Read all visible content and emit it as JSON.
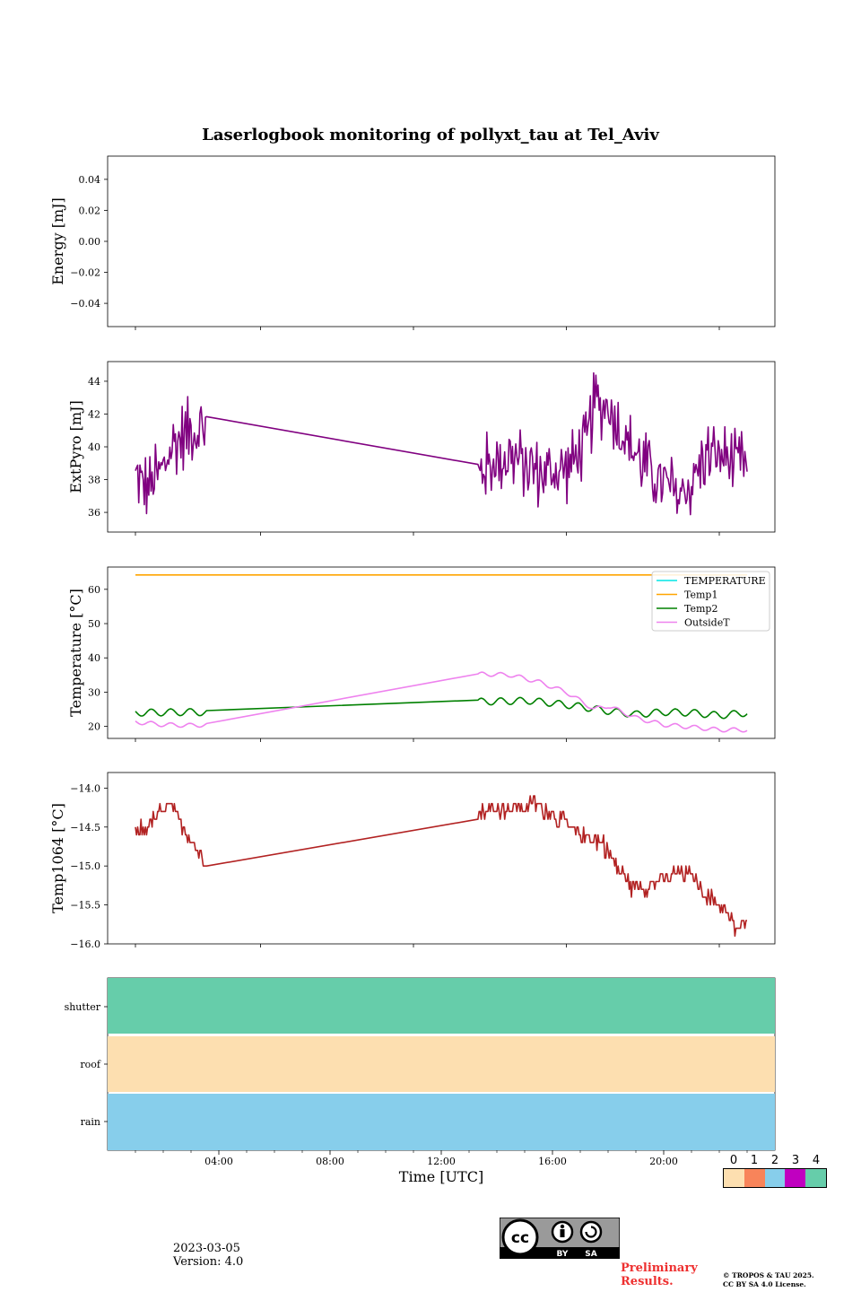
{
  "title": "Laserlogbook monitoring of pollyxt_tau at Tel_Aviv",
  "xlabel": "Time [UTC]",
  "x_ticks": [
    "04:00",
    "08:00",
    "12:00",
    "16:00",
    "20:00"
  ],
  "footer": {
    "date": "2023-03-05",
    "version": "Version: 4.0",
    "preliminary": "Preliminary",
    "results": "Results.",
    "copyright1": "© TROPOS & TAU 2025.",
    "copyright2": "CC BY SA 4.0 License."
  },
  "cc_badge": {
    "by": "BY",
    "sa": "SA"
  },
  "colorbar": {
    "ticks": [
      "0",
      "1",
      "2",
      "3",
      "4"
    ],
    "colors": [
      "#fddfb0",
      "#f8845a",
      "#87ceeb",
      "#c000c0",
      "#66cdaa"
    ]
  },
  "chart_data": [
    {
      "type": "line",
      "ylabel": "Energy [mJ]",
      "ylim": [
        -0.055,
        0.055
      ],
      "yticks": [
        0.04,
        0.02,
        0.0,
        -0.02,
        -0.04
      ],
      "ytick_labels": [
        "0.04",
        "0.02",
        "0.00",
        "−0.02",
        "−0.04"
      ],
      "series": []
    },
    {
      "type": "line",
      "ylabel": "ExtPyro [mJ]",
      "ylim": [
        34.8,
        45.2
      ],
      "yticks": [
        36,
        38,
        40,
        42,
        44
      ],
      "ytick_labels": [
        "36",
        "38",
        "40",
        "42",
        "44"
      ],
      "series": [
        {
          "color": "#800080",
          "noise": 2.2,
          "points": [
            [
              1.0,
              38.2
            ],
            [
              1.5,
              37.5
            ],
            [
              2.0,
              38.8
            ],
            [
              2.5,
              40.5
            ],
            [
              3.0,
              41.0
            ],
            [
              3.5,
              41.2
            ],
            [
              3.6,
              41.0
            ],
            [
              13.3,
              38.2
            ],
            [
              13.6,
              38.8
            ],
            [
              14.5,
              39.5
            ],
            [
              15.5,
              38.4
            ],
            [
              16.5,
              38.5
            ],
            [
              17.2,
              40.0
            ],
            [
              17.5,
              42.5
            ],
            [
              18.0,
              42.5
            ],
            [
              18.6,
              40.5
            ],
            [
              19.5,
              38.5
            ],
            [
              20.5,
              37.0
            ],
            [
              21.0,
              37.8
            ],
            [
              21.5,
              39.5
            ],
            [
              22.0,
              39.5
            ],
            [
              22.5,
              39.0
            ],
            [
              23.0,
              38.8
            ]
          ]
        }
      ]
    },
    {
      "type": "line",
      "ylabel": "Temperature [°C]",
      "ylim": [
        16.5,
        66.5
      ],
      "yticks": [
        20,
        30,
        40,
        50,
        60
      ],
      "ytick_labels": [
        "20",
        "30",
        "40",
        "50",
        "60"
      ],
      "legend": {
        "position": "top-right",
        "entries": [
          "TEMPERATURE",
          "Temp1",
          "Temp2",
          "OutsideT"
        ]
      },
      "series": [
        {
          "name": "TEMPERATURE",
          "color": "#00e5e5",
          "points": []
        },
        {
          "name": "Temp1",
          "color": "#ffa500",
          "points": [
            [
              1.0,
              64.2
            ],
            [
              23.0,
              64.2
            ]
          ]
        },
        {
          "name": "Temp2",
          "color": "#008000",
          "wave": 1.0,
          "points": [
            [
              1.0,
              24.0
            ],
            [
              3.2,
              24.2
            ],
            [
              3.6,
              24.0
            ],
            [
              13.3,
              27.2
            ],
            [
              15.2,
              27.5
            ],
            [
              16.0,
              26.8
            ],
            [
              17.0,
              25.8
            ],
            [
              18.0,
              24.5
            ],
            [
              19.0,
              23.5
            ],
            [
              20.0,
              24.2
            ],
            [
              21.0,
              24.0
            ],
            [
              22.0,
              23.2
            ],
            [
              23.0,
              24.0
            ]
          ]
        },
        {
          "name": "OutsideT",
          "color": "#ee82ee",
          "wave": 0.6,
          "points": [
            [
              1.0,
              21.3
            ],
            [
              2.0,
              20.5
            ],
            [
              3.0,
              20.3
            ],
            [
              3.6,
              20.5
            ],
            [
              13.5,
              35.3
            ],
            [
              14.5,
              35.0
            ],
            [
              15.5,
              33.0
            ],
            [
              16.5,
              30.0
            ],
            [
              17.5,
              25.0
            ],
            [
              18.0,
              26.0
            ],
            [
              19.0,
              22.5
            ],
            [
              20.0,
              20.5
            ],
            [
              21.0,
              19.8
            ],
            [
              22.0,
              19.0
            ],
            [
              23.0,
              19.0
            ]
          ]
        }
      ]
    },
    {
      "type": "line",
      "ylabel": "Temp1064 [°C]",
      "ylim": [
        -16.0,
        -13.8
      ],
      "yticks": [
        -14.0,
        -14.5,
        -15.0,
        -15.5,
        -16.0
      ],
      "ytick_labels": [
        "−14.0",
        "−14.5",
        "−15.0",
        "−15.5",
        "−16.0"
      ],
      "series": [
        {
          "color": "#b22222",
          "noise": 0.12,
          "step": 0.1,
          "points": [
            [
              1.0,
              -14.6
            ],
            [
              1.5,
              -14.45
            ],
            [
              2.0,
              -14.3
            ],
            [
              2.3,
              -14.25
            ],
            [
              2.8,
              -14.55
            ],
            [
              3.3,
              -14.85
            ],
            [
              3.6,
              -14.92
            ],
            [
              13.3,
              -14.3
            ],
            [
              14.5,
              -14.25
            ],
            [
              15.5,
              -14.2
            ],
            [
              16.2,
              -14.4
            ],
            [
              17.0,
              -14.6
            ],
            [
              17.8,
              -14.7
            ],
            [
              18.3,
              -15.0
            ],
            [
              18.8,
              -15.25
            ],
            [
              19.5,
              -15.25
            ],
            [
              20.5,
              -15.1
            ],
            [
              21.0,
              -15.1
            ],
            [
              21.5,
              -15.35
            ],
            [
              22.2,
              -15.55
            ],
            [
              22.6,
              -15.8
            ],
            [
              23.0,
              -15.75
            ]
          ]
        }
      ]
    },
    {
      "type": "heatmap",
      "ylabels": [
        "shutter",
        "roof",
        "rain"
      ],
      "rows": [
        {
          "label": "shutter",
          "value": 4,
          "color": "#66cdaa"
        },
        {
          "label": "roof",
          "value": 0,
          "color": "#fddfb0"
        },
        {
          "label": "rain",
          "value": 2,
          "color": "#87ceeb"
        }
      ]
    }
  ]
}
